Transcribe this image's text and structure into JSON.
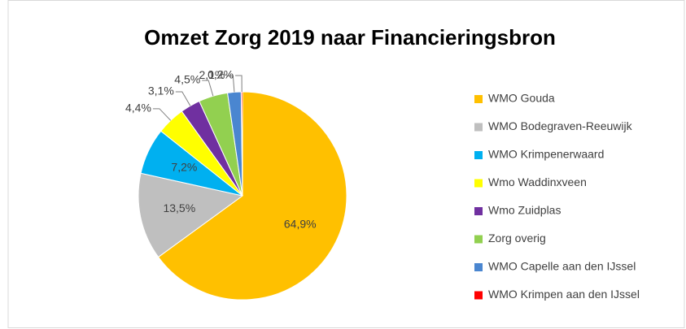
{
  "chart_data": {
    "type": "pie",
    "title": "Omzet Zorg 2019 naar Financieringsbron",
    "categories": [
      "WMO Gouda",
      "WMO Bodegraven-Reeuwijk",
      "WMO Krimpenerwaard",
      "Wmo Waddinxveen",
      "Wmo Zuidplas",
      "Zorg overig",
      "WMO Capelle aan den IJssel",
      "WMO Krimpen aan den IJssel"
    ],
    "values": [
      64.9,
      13.5,
      7.2,
      4.4,
      3.1,
      4.5,
      2.1,
      0.2
    ],
    "value_labels": [
      "64,9%",
      "13,5%",
      "7,2%",
      "4,4%",
      "3,1%",
      "4,5%",
      "2,1%",
      "0,2%"
    ],
    "colors": [
      "#ffc000",
      "#bfbfbf",
      "#00b0f0",
      "#ffff00",
      "#7030a0",
      "#92d050",
      "#4a86d0",
      "#ff0000"
    ],
    "legend": "right"
  }
}
